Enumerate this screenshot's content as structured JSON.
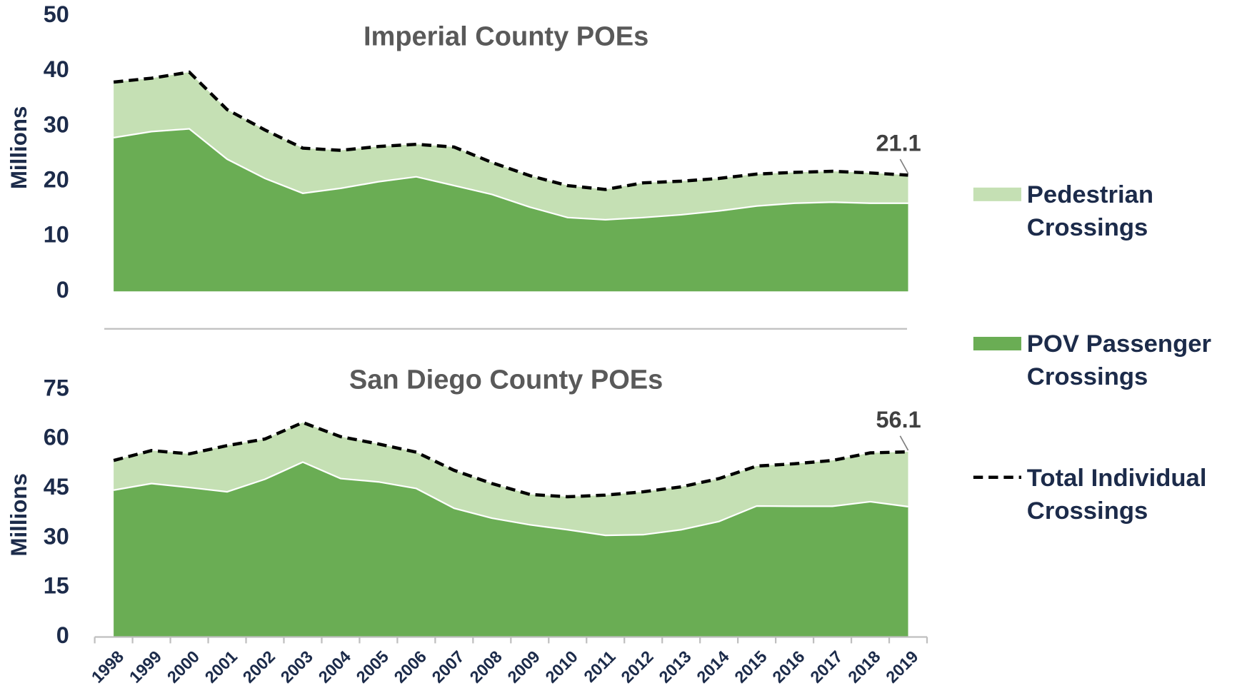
{
  "chart_data": [
    {
      "type": "stacked-area",
      "title": "Imperial County POEs",
      "ylabel": "Millions",
      "ylim": [
        0,
        50
      ],
      "yticks": [
        0,
        10,
        20,
        30,
        40,
        50
      ],
      "series": [
        {
          "name": "Pedestrian Crossings",
          "color": "#c5e0b4",
          "values": [
            10.1,
            9.7,
            10.3,
            9.0,
            8.8,
            8.2,
            6.9,
            6.4,
            5.9,
            7.0,
            5.8,
            5.7,
            5.8,
            5.5,
            6.3,
            6.1,
            5.9,
            5.8,
            5.6,
            5.6,
            5.5,
            5.1
          ]
        },
        {
          "name": "POV Passenger Crossings",
          "color": "#6aad54",
          "values": [
            27.9,
            29.0,
            29.5,
            24.0,
            20.5,
            17.8,
            18.7,
            19.9,
            20.8,
            19.2,
            17.6,
            15.3,
            13.4,
            13.0,
            13.4,
            13.9,
            14.6,
            15.5,
            16.0,
            16.2,
            16.0,
            16.0
          ]
        },
        {
          "name": "Total Individual Crossings",
          "color": "#000000",
          "dashed": true,
          "values": [
            38.0,
            38.7,
            39.8,
            33.0,
            29.3,
            26.0,
            25.6,
            26.3,
            26.7,
            26.2,
            23.4,
            21.0,
            19.2,
            18.5,
            19.7,
            20.0,
            20.5,
            21.3,
            21.6,
            21.8,
            21.5,
            21.1
          ]
        }
      ]
    },
    {
      "type": "stacked-area",
      "title": "San Diego County POEs",
      "ylabel": "Millions",
      "ylim": [
        0,
        75
      ],
      "yticks": [
        0,
        15,
        30,
        45,
        60,
        75
      ],
      "categories": [
        "1998",
        "1999",
        "2000",
        "2001",
        "2002",
        "2003",
        "2004",
        "2005",
        "2006",
        "2007",
        "2008",
        "2009",
        "2010",
        "2011",
        "2012",
        "2013",
        "2014",
        "2015",
        "2016",
        "2017",
        "2018",
        "2019"
      ],
      "series": [
        {
          "name": "Pedestrian Crossings",
          "color": "#c5e0b4",
          "values": [
            9.0,
            10.0,
            10.2,
            14.0,
            12.2,
            12.0,
            12.7,
            11.5,
            11.0,
            11.5,
            10.5,
            9.2,
            10.0,
            12.2,
            13.0,
            13.0,
            13.0,
            12.1,
            12.9,
            13.9,
            14.8,
            16.6
          ]
        },
        {
          "name": "POV Passenger Crossings",
          "color": "#6aad54",
          "values": [
            44.5,
            46.5,
            45.3,
            44.0,
            47.8,
            53.0,
            48.0,
            47.0,
            45.0,
            39.0,
            36.0,
            34.0,
            32.5,
            30.8,
            31.0,
            32.5,
            35.0,
            39.7,
            39.6,
            39.6,
            41.0,
            39.5
          ]
        },
        {
          "name": "Total Individual Crossings",
          "color": "#000000",
          "dashed": true,
          "values": [
            53.5,
            56.5,
            55.5,
            58.0,
            60.0,
            65.0,
            60.7,
            58.5,
            56.0,
            50.5,
            46.5,
            43.2,
            42.5,
            43.0,
            44.0,
            45.5,
            48.0,
            51.8,
            52.5,
            53.5,
            55.8,
            56.1
          ]
        }
      ]
    }
  ]
}
